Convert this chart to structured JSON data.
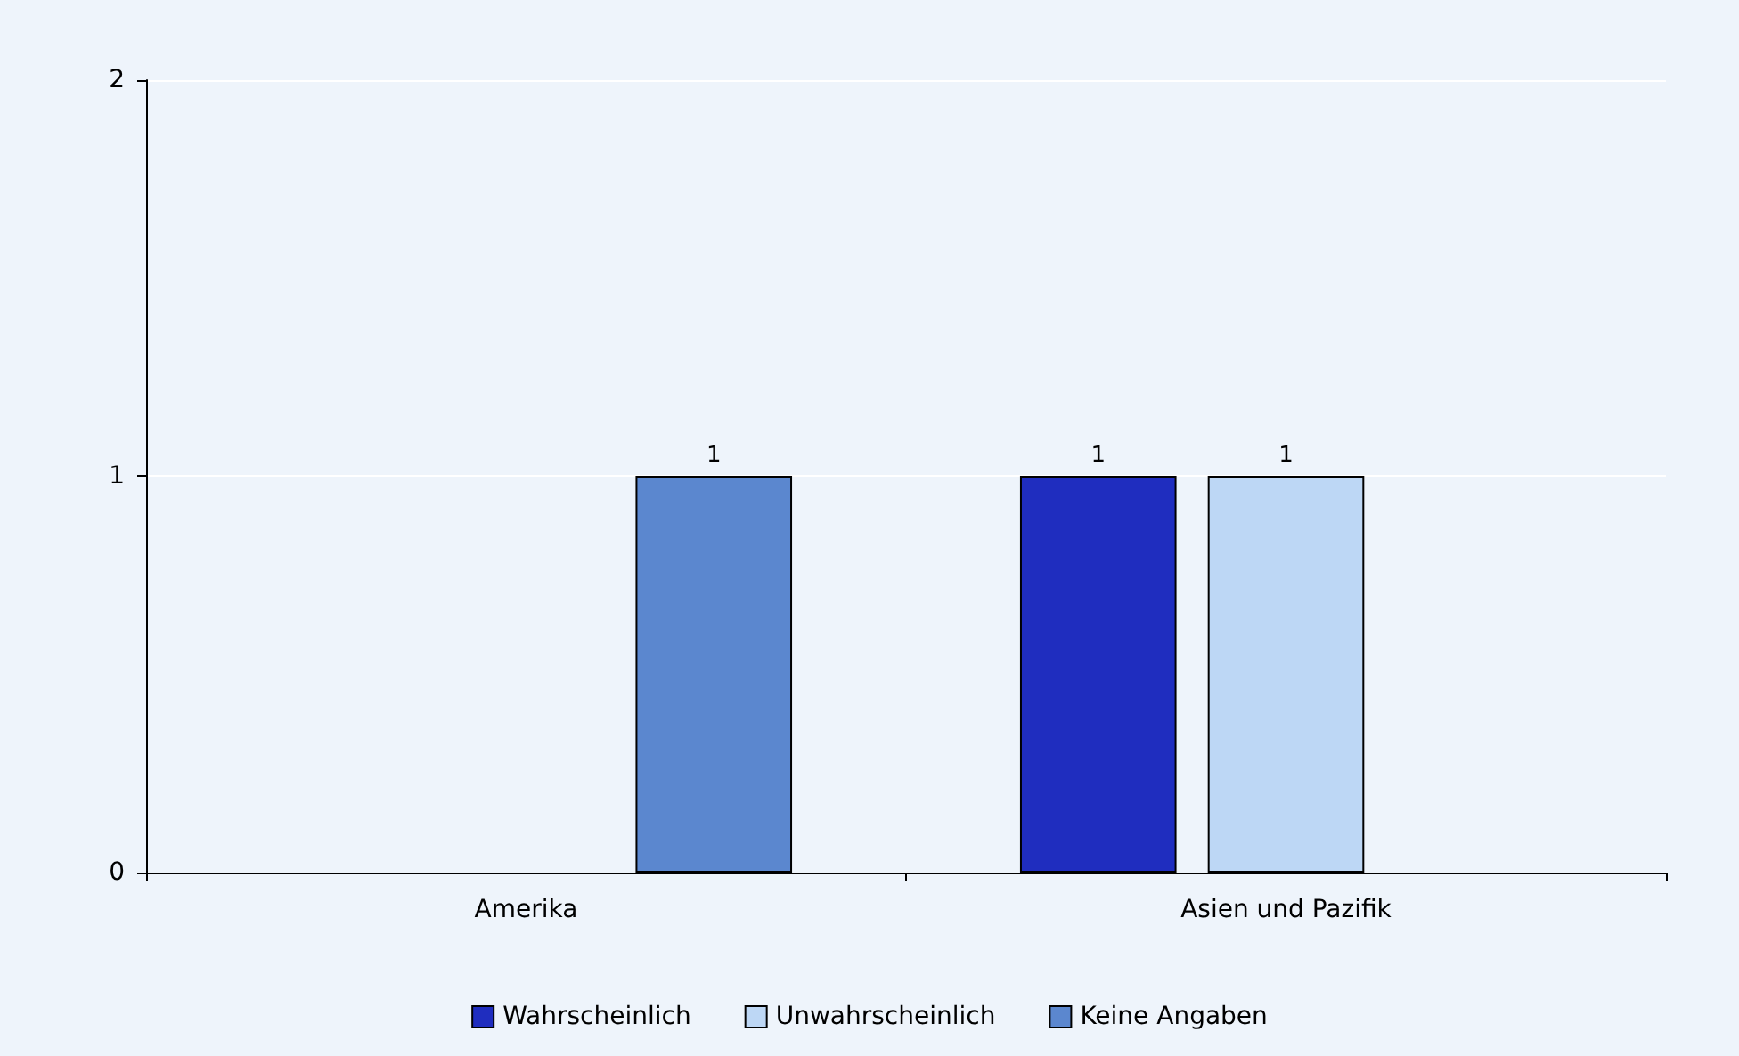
{
  "chart_data": {
    "type": "bar",
    "categories": [
      "Amerika",
      "Asien und Pazifik"
    ],
    "series": [
      {
        "name": "Wahrscheinlich",
        "color": "#1f2dbf",
        "values": [
          null,
          1
        ]
      },
      {
        "name": "Unwahrscheinlich",
        "color": "#bdd7f5",
        "values": [
          null,
          1
        ]
      },
      {
        "name": "Keine Angaben",
        "color": "#5b87cf",
        "values": [
          1,
          null
        ]
      }
    ],
    "ylim": [
      0,
      2
    ],
    "yticks": [
      0,
      1,
      2
    ],
    "grid": "y",
    "legend": "bottom",
    "data_labels": true
  }
}
